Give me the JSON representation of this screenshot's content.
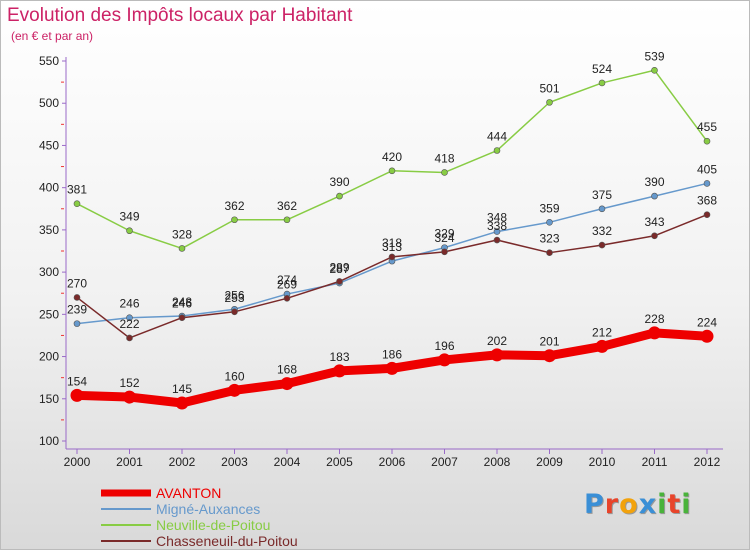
{
  "header": {
    "title": "Evolution des Impôts locaux par Habitant",
    "subtitle": "(en € et par an)"
  },
  "logo": {
    "text": "Proxiti",
    "colors": [
      "#3a8fd6",
      "#e8442a",
      "#f2a20c",
      "#3a8fd6",
      "#49b33b",
      "#e8442a",
      "#49b33b"
    ]
  },
  "chart_data": {
    "type": "line",
    "title": "Evolution des Impôts locaux par Habitant",
    "subtitle": "(en € et par an)",
    "xlabel": "",
    "ylabel": "",
    "x": [
      "2000",
      "2001",
      "2002",
      "2003",
      "2004",
      "2005",
      "2006",
      "2007",
      "2008",
      "2009",
      "2010",
      "2011",
      "2012"
    ],
    "yticks": [
      100,
      150,
      200,
      250,
      300,
      350,
      400,
      450,
      500,
      550
    ],
    "ylim": [
      100,
      550
    ],
    "grid": false,
    "legend_position": "bottom-left",
    "series": [
      {
        "name": "AVANTON",
        "color": "#ee0000",
        "width": 9,
        "values": [
          154,
          152,
          145,
          160,
          168,
          183,
          186,
          196,
          202,
          201,
          212,
          228,
          224
        ]
      },
      {
        "name": "Migné-Auxances",
        "color": "#6699cc",
        "width": 1.5,
        "values": [
          239,
          246,
          248,
          256,
          274,
          287,
          313,
          329,
          348,
          359,
          375,
          390,
          405
        ]
      },
      {
        "name": "Neuville-de-Poitou",
        "color": "#88cc44",
        "width": 1.5,
        "values": [
          381,
          349,
          328,
          362,
          362,
          390,
          420,
          418,
          444,
          501,
          524,
          539,
          455
        ]
      },
      {
        "name": "Chasseneuil-du-Poitou",
        "color": "#7a2a2a",
        "width": 1.5,
        "values": [
          270,
          222,
          246,
          253,
          269,
          289,
          318,
          324,
          338,
          323,
          332,
          343,
          368
        ]
      }
    ]
  }
}
